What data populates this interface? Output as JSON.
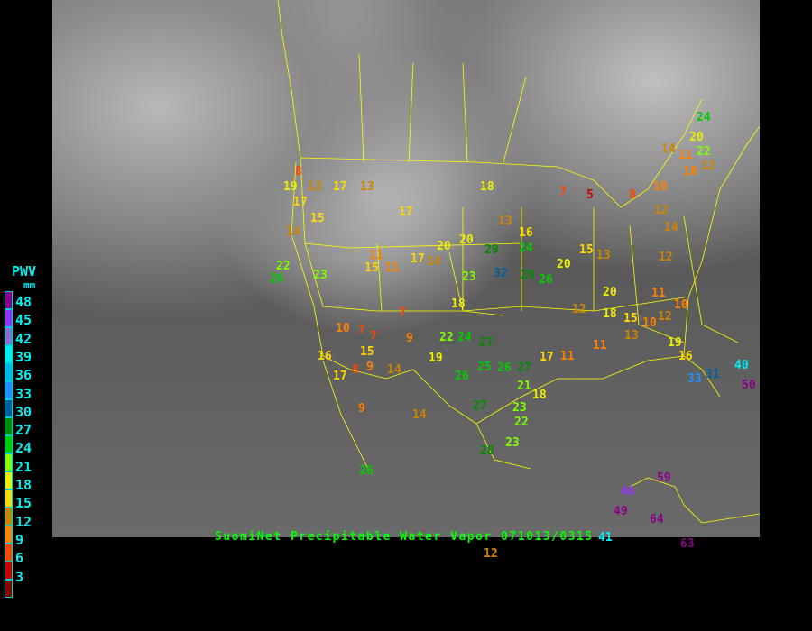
{
  "caption": "SuomiNet Precipitable Water Vapor 071013/0315",
  "legend": {
    "title": "PWV",
    "unit": "mm",
    "labels": [
      "48",
      "45",
      "42",
      "39",
      "36",
      "33",
      "30",
      "27",
      "24",
      "21",
      "18",
      "15",
      "12",
      "9",
      "6",
      "3"
    ],
    "colors": [
      "#8b008b",
      "#9b30ff",
      "#8470d0",
      "#00eeee",
      "#00b8e8",
      "#1e90ff",
      "#00609f",
      "#008b00",
      "#00cd00",
      "#7fff00",
      "#eeee00",
      "#ffd700",
      "#cd8500",
      "#ff8000",
      "#ff4500",
      "#cd0000",
      "#8b0000"
    ]
  },
  "border_color": "#ffff00",
  "stations": [
    "24",
    "20",
    "22",
    "11",
    "10",
    "12",
    "14",
    "8",
    "19",
    "13",
    "17",
    "17",
    "13",
    "15",
    "14",
    "17",
    "18",
    "13",
    "22",
    "26",
    "23",
    "11",
    "15",
    "11",
    "17",
    "14",
    "20",
    "20",
    "29",
    "24",
    "16",
    "23",
    "32",
    "29",
    "26",
    "18",
    "9",
    "7",
    "7",
    "10",
    "8",
    "15",
    "14",
    "9",
    "17",
    "16",
    "7",
    "19",
    "22",
    "24",
    "27",
    "26",
    "25",
    "26",
    "27",
    "17",
    "21",
    "18",
    "27",
    "23",
    "23",
    "28",
    "22",
    "26",
    "9",
    "14",
    "11",
    "12",
    "15",
    "20",
    "13",
    "20",
    "18",
    "15",
    "11",
    "10",
    "13",
    "12",
    "10",
    "11",
    "14",
    "12",
    "19",
    "16",
    "33",
    "31",
    "40",
    "50",
    "49",
    "46",
    "59",
    "64",
    "63",
    "41",
    "12",
    "10",
    "7",
    "5",
    "8",
    "12"
  ]
}
